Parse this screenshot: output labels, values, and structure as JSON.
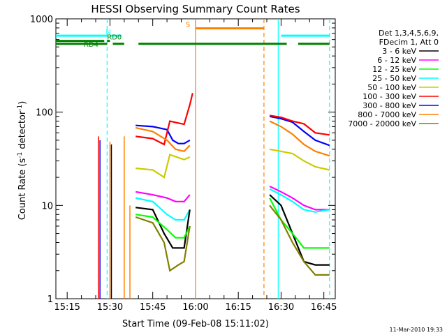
{
  "chart_data": {
    "type": "line",
    "title": "HESSI Observing Summary Count Rates",
    "xlabel": "Start Time (09-Feb-08 15:11:02)",
    "ylabel_main": "Count Rate (s",
    "ylabel_sup1": "-1",
    "ylabel_mid": " detector",
    "ylabel_sup2": "-1",
    "ylabel_end": ")",
    "y_scale": "log",
    "xlim": [
      "15:11:02",
      "16:49:00"
    ],
    "ylim": [
      1,
      1000
    ],
    "x_ticks": [
      "15:15",
      "15:30",
      "15:45",
      "16:00",
      "16:15",
      "16:30",
      "16:45"
    ],
    "y_ticks": [
      1,
      10,
      100,
      1000
    ],
    "y_tick_labels": [
      "1",
      "10",
      "100",
      "1000"
    ],
    "legend": {
      "placement": "right",
      "header": [
        "Det 1,3,4,5,6,9,",
        "FDecim 1, Att 0"
      ],
      "entries": [
        {
          "label": "3 - 6 keV",
          "color": "#000000"
        },
        {
          "label": "6 - 12 keV",
          "color": "#ff00ff"
        },
        {
          "label": "12 - 25 keV",
          "color": "#00ff00"
        },
        {
          "label": "25 - 50 keV",
          "color": "#00ffff"
        },
        {
          "label": "50 - 100 keV",
          "color": "#cccc00"
        },
        {
          "label": "100 - 300 keV",
          "color": "#ff0000"
        },
        {
          "label": "300 - 800 keV",
          "color": "#0000ff"
        },
        {
          "label": "800 - 7000 keV",
          "color": "#ff8000"
        },
        {
          "label": "7000 - 20000 keV",
          "color": "#808000"
        }
      ]
    },
    "series": [
      {
        "name": "300 - 800 keV",
        "color": "#0000ff",
        "segments": [
          [
            [
              "15:39",
              "72"
            ],
            [
              "15:45",
              "70"
            ],
            [
              "15:50",
              "65"
            ],
            [
              "15:52",
              "50"
            ],
            [
              "15:54",
              "46"
            ],
            [
              "15:56",
              "46"
            ],
            [
              "15:58",
              "50"
            ]
          ],
          [
            [
              "16:26",
              "90"
            ],
            [
              "16:30",
              "85"
            ],
            [
              "16:34",
              "78"
            ],
            [
              "16:38",
              "62"
            ],
            [
              "16:42",
              "50"
            ],
            [
              "16:47",
              "44"
            ]
          ]
        ]
      },
      {
        "name": "100 - 300 keV",
        "color": "#ff0000",
        "segments": [
          [
            [
              "15:39",
              "55"
            ],
            [
              "15:45",
              "52"
            ],
            [
              "15:49",
              "45"
            ],
            [
              "15:51",
              "80"
            ],
            [
              "15:56",
              "74"
            ],
            [
              "15:58",
              "120"
            ],
            [
              "15:59",
              "160"
            ]
          ],
          [
            [
              "16:26",
              "92"
            ],
            [
              "16:30",
              "88"
            ],
            [
              "16:34",
              "80"
            ],
            [
              "16:38",
              "75"
            ],
            [
              "16:42",
              "60"
            ],
            [
              "16:47",
              "57"
            ]
          ]
        ]
      },
      {
        "name": "800 - 7000 keV",
        "color": "#ff8000",
        "segments": [
          [
            [
              "15:39",
              "68"
            ],
            [
              "15:45",
              "62"
            ],
            [
              "15:50",
              "50"
            ],
            [
              "15:53",
              "40"
            ],
            [
              "15:56",
              "38"
            ],
            [
              "15:58",
              "44"
            ]
          ],
          [
            [
              "16:26",
              "80"
            ],
            [
              "16:30",
              "70"
            ],
            [
              "16:34",
              "58"
            ],
            [
              "16:38",
              "45"
            ],
            [
              "16:42",
              "38"
            ],
            [
              "16:47",
              "34"
            ]
          ]
        ]
      },
      {
        "name": "50 - 100 keV",
        "color": "#cccc00",
        "segments": [
          [
            [
              "15:39",
              "25"
            ],
            [
              "15:45",
              "24"
            ],
            [
              "15:49",
              "20"
            ],
            [
              "15:51",
              "35"
            ],
            [
              "15:56",
              "31"
            ],
            [
              "15:58",
              "33"
            ]
          ],
          [
            [
              "16:26",
              "40"
            ],
            [
              "16:30",
              "38"
            ],
            [
              "16:34",
              "36"
            ],
            [
              "16:38",
              "30"
            ],
            [
              "16:42",
              "26"
            ],
            [
              "16:47",
              "24"
            ]
          ]
        ]
      },
      {
        "name": "6 - 12 keV",
        "color": "#ff00ff",
        "segments": [
          [
            [
              "15:39",
              "14"
            ],
            [
              "15:45",
              "13"
            ],
            [
              "15:50",
              "12"
            ],
            [
              "15:53",
              "11"
            ],
            [
              "15:56",
              "11"
            ],
            [
              "15:58",
              "13"
            ]
          ],
          [
            [
              "16:26",
              "16"
            ],
            [
              "16:30",
              "14"
            ],
            [
              "16:34",
              "12"
            ],
            [
              "16:38",
              "10"
            ],
            [
              "16:42",
              "9"
            ],
            [
              "16:47",
              "9"
            ]
          ]
        ]
      },
      {
        "name": "25 - 50 keV",
        "color": "#00ffff",
        "segments": [
          [
            [
              "15:39",
              "12"
            ],
            [
              "15:45",
              "11"
            ],
            [
              "15:50",
              "8"
            ],
            [
              "15:53",
              "7"
            ],
            [
              "15:56",
              "7"
            ],
            [
              "15:58",
              "9"
            ]
          ],
          [
            [
              "16:26",
              "15"
            ],
            [
              "16:30",
              "13"
            ],
            [
              "16:34",
              "11"
            ],
            [
              "16:38",
              "9"
            ],
            [
              "16:42",
              "8.5"
            ],
            [
              "16:47",
              "9"
            ]
          ]
        ]
      },
      {
        "name": "3 - 6 keV",
        "color": "#000000",
        "segments": [
          [
            [
              "15:39",
              "9.5"
            ],
            [
              "15:45",
              "9"
            ],
            [
              "15:49",
              "5"
            ],
            [
              "15:52",
              "3.5"
            ],
            [
              "15:56",
              "3.5"
            ],
            [
              "15:58",
              "9"
            ]
          ],
          [
            [
              "16:26",
              "13"
            ],
            [
              "16:30",
              "10"
            ],
            [
              "16:34",
              "5"
            ],
            [
              "16:38",
              "2.5"
            ],
            [
              "16:42",
              "2.3"
            ],
            [
              "16:47",
              "2.3"
            ]
          ]
        ]
      },
      {
        "name": "12 - 25 keV",
        "color": "#00ff00",
        "segments": [
          [
            [
              "15:39",
              "8"
            ],
            [
              "15:45",
              "7.5"
            ],
            [
              "15:50",
              "5.5"
            ],
            [
              "15:53",
              "4.5"
            ],
            [
              "15:56",
              "4.5"
            ],
            [
              "15:58",
              "6"
            ]
          ],
          [
            [
              "16:26",
              "12"
            ],
            [
              "16:30",
              "7"
            ],
            [
              "16:34",
              "5"
            ],
            [
              "16:38",
              "3.5"
            ],
            [
              "16:42",
              "3.5"
            ],
            [
              "16:47",
              "3.5"
            ]
          ]
        ]
      },
      {
        "name": "7000 - 20000 keV",
        "color": "#808000",
        "segments": [
          [
            [
              "15:39",
              "7.5"
            ],
            [
              "15:45",
              "6.5"
            ],
            [
              "15:49",
              "4"
            ],
            [
              "15:51",
              "2"
            ],
            [
              "15:54",
              "2.3"
            ],
            [
              "15:56",
              "2.5"
            ],
            [
              "15:58",
              "6"
            ]
          ],
          [
            [
              "16:26",
              "10"
            ],
            [
              "16:30",
              "7"
            ],
            [
              "16:34",
              "4"
            ],
            [
              "16:38",
              "2.5"
            ],
            [
              "16:42",
              "1.8"
            ],
            [
              "16:47",
              "1.8"
            ]
          ]
        ]
      }
    ],
    "spikes": [
      {
        "x": "15:26",
        "top": 55,
        "color": "#ff0000"
      },
      {
        "x": "15:26:30",
        "top": 50,
        "color": "#0000ff"
      },
      {
        "x": "15:30",
        "top": 48,
        "color": "#ff8000"
      },
      {
        "x": "15:30:30",
        "top": 45,
        "color": "#000000"
      },
      {
        "x": "15:35",
        "top": 55,
        "color": "#ff8000"
      },
      {
        "x": "15:37",
        "top": 10,
        "color": "#ff8000"
      }
    ],
    "markers": {
      "saa_line": {
        "label": "N",
        "color": "#00ffff",
        "y": 660,
        "spans": [
          [
            "15:11:02",
            "15:29"
          ],
          [
            "15:30",
            "15:34"
          ],
          [
            "16:30",
            "16:47"
          ]
        ]
      },
      "night_line": {
        "label": "RD0",
        "color": "#008000",
        "y": 580,
        "spans": [
          [
            "15:11:02",
            "15:28"
          ],
          [
            "15:29",
            "15:30"
          ]
        ]
      },
      "rd4_line": {
        "label": "RD4",
        "color": "#008000",
        "y": 540,
        "spans": [
          [
            "15:11:02",
            "15:29"
          ],
          [
            "15:31",
            "15:35"
          ],
          [
            "15:40",
            "16:24"
          ],
          [
            "16:24",
            "16:32"
          ],
          [
            "16:36",
            "16:47"
          ]
        ]
      },
      "s_line": {
        "label": "S",
        "color": "#ff8000",
        "y": 790,
        "spans": [
          [
            "16:00",
            "16:24"
          ]
        ]
      }
    },
    "vertical_lines": [
      {
        "x": "15:29",
        "color": "#00ffff",
        "style": "dashed"
      },
      {
        "x": "16:00",
        "color": "#ff8000",
        "style": "solid"
      },
      {
        "x": "16:24",
        "color": "#ff8000",
        "style": "dashed"
      },
      {
        "x": "16:29",
        "color": "#00ffff",
        "style": "solid"
      },
      {
        "x": "16:47",
        "color": "#00ffff",
        "style": "dashed"
      }
    ],
    "footer_date": "11-Mar-2010 19:33"
  }
}
